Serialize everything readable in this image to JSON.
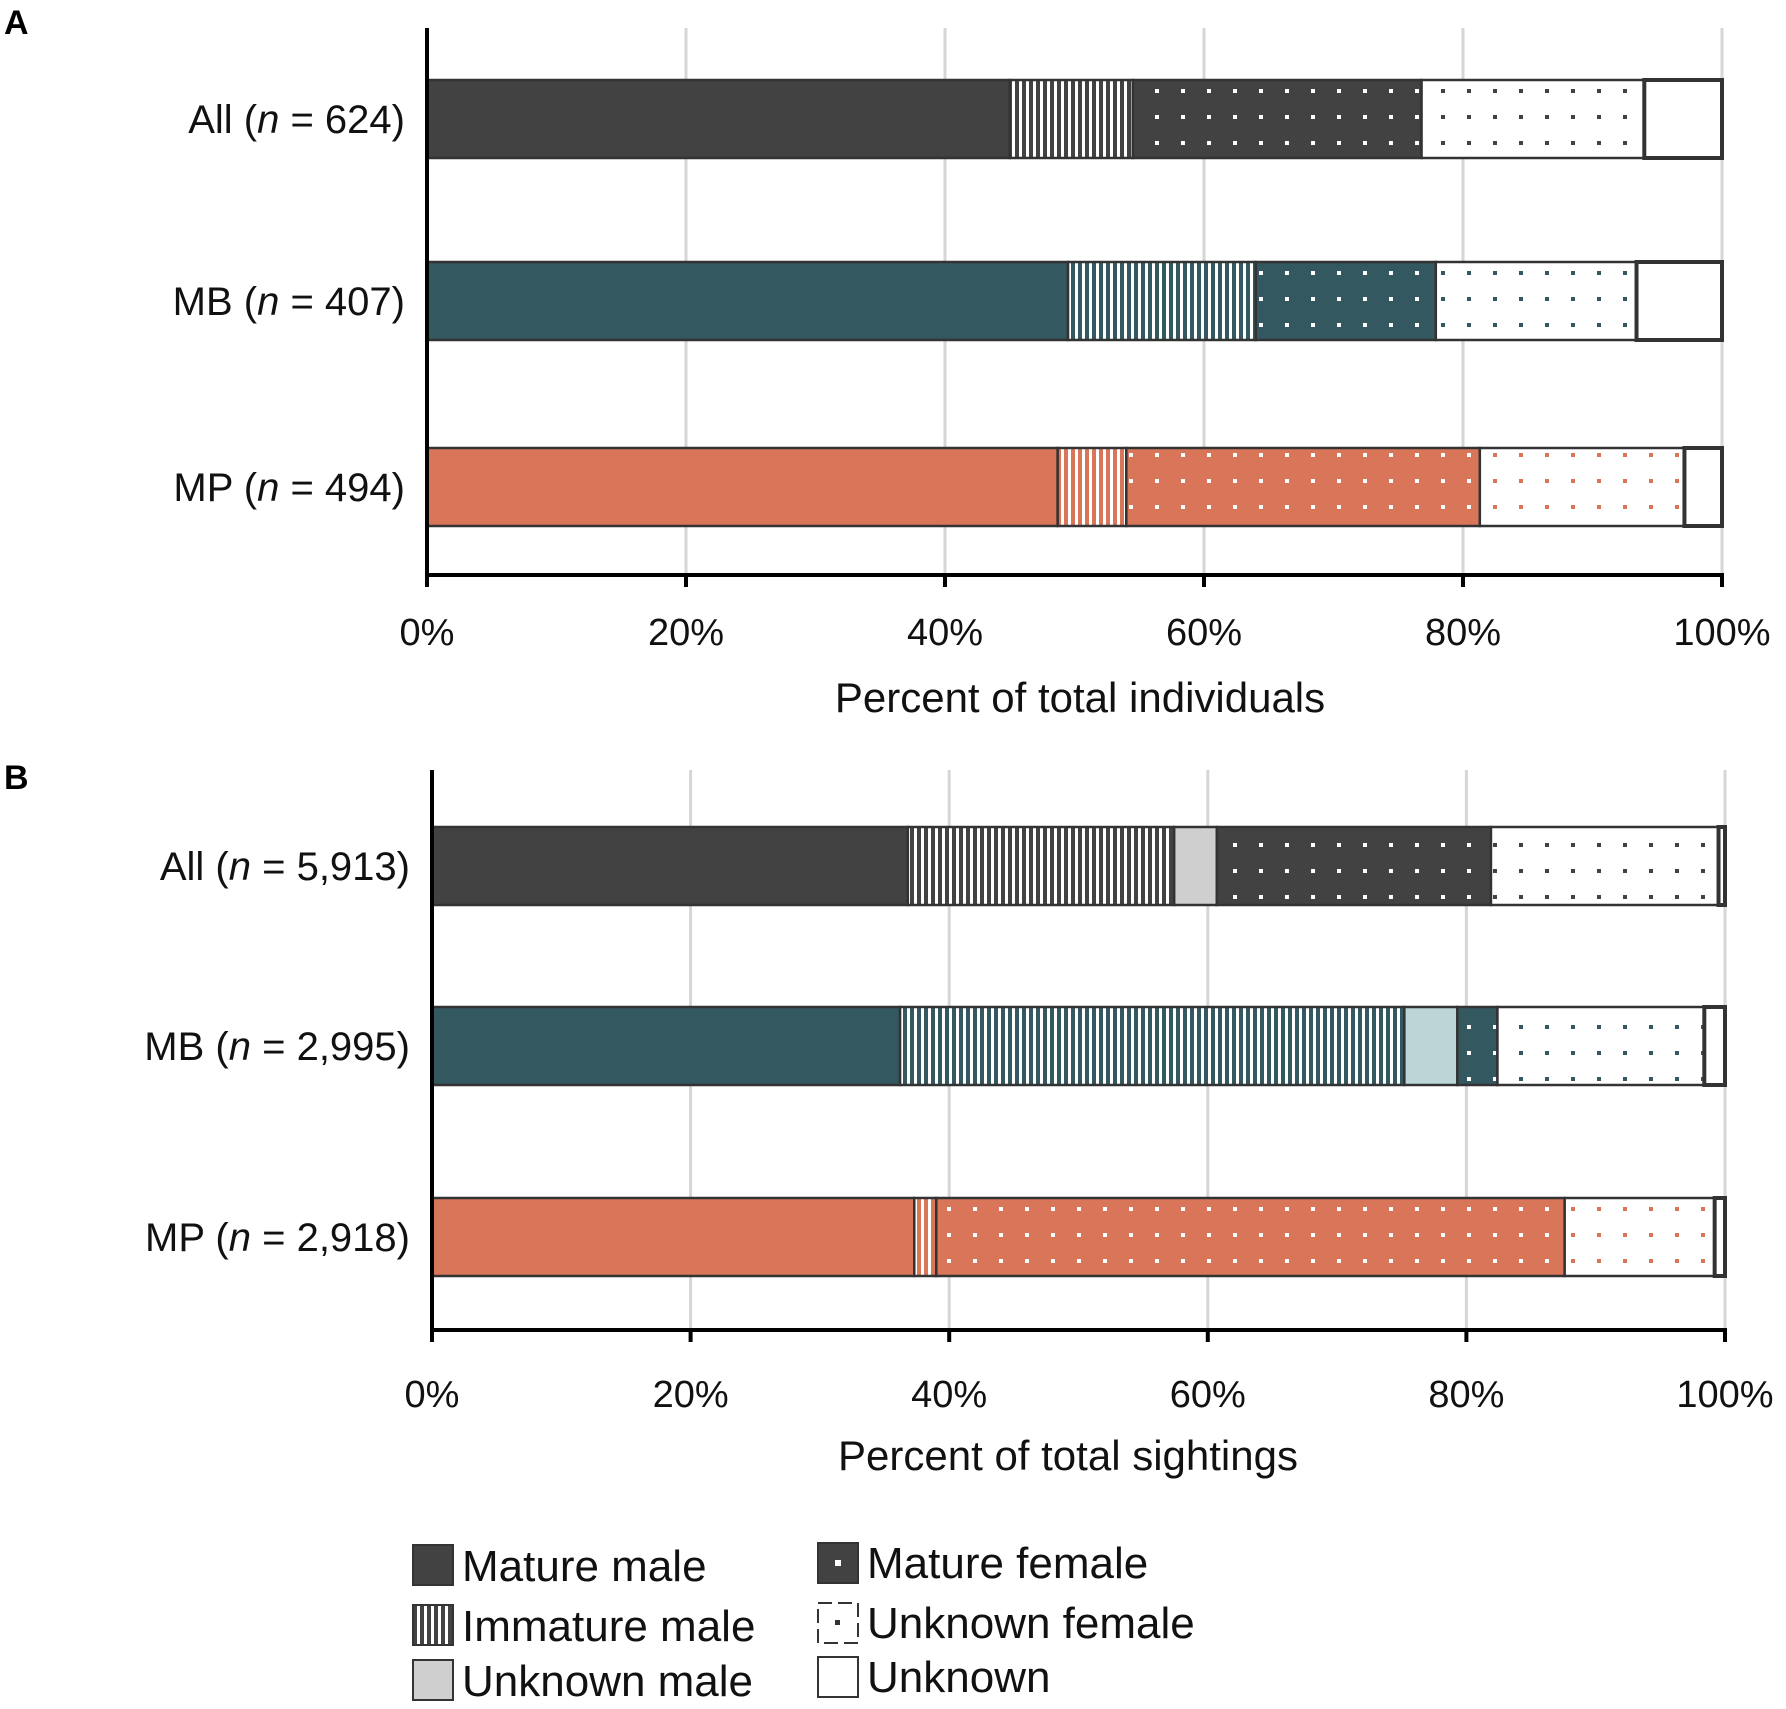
{
  "chart_data": [
    {
      "panel": "A",
      "type": "bar",
      "orientation": "horizontal",
      "stacked": true,
      "xlabel": "Percent of total individuals",
      "xlim": [
        0,
        100
      ],
      "x_ticks": [
        "0%",
        "20%",
        "40%",
        "60%",
        "80%",
        "100%"
      ],
      "grid": true,
      "categories": [
        {
          "id": "all",
          "label_pre": "All (",
          "label_n": "n",
          "label_post": " = 624)"
        },
        {
          "id": "mb",
          "label_pre": "MB (",
          "label_n": "n",
          "label_post": " = 407)"
        },
        {
          "id": "mp",
          "label_pre": "MP (",
          "label_n": "n",
          "label_post": " = 494)"
        }
      ],
      "series": [
        {
          "name": "Mature male",
          "values": [
            45.0,
            49.5,
            48.7
          ]
        },
        {
          "name": "Immature male",
          "values": [
            9.5,
            14.5,
            5.3
          ]
        },
        {
          "name": "Unknown male",
          "values": [
            0,
            0,
            0
          ]
        },
        {
          "name": "Mature female",
          "values": [
            22.3,
            13.9,
            27.3
          ]
        },
        {
          "name": "Unknown female",
          "values": [
            17.2,
            15.5,
            15.8
          ]
        },
        {
          "name": "Unknown",
          "values": [
            6.0,
            6.6,
            2.9
          ]
        }
      ]
    },
    {
      "panel": "B",
      "type": "bar",
      "orientation": "horizontal",
      "stacked": true,
      "xlabel": "Percent of total sightings",
      "xlim": [
        0,
        100
      ],
      "x_ticks": [
        "0%",
        "20%",
        "40%",
        "60%",
        "80%",
        "100%"
      ],
      "grid": true,
      "categories": [
        {
          "id": "all",
          "label_pre": "All (",
          "label_n": "n",
          "label_post": " = 5,913)"
        },
        {
          "id": "mb",
          "label_pre": "MB (",
          "label_n": "n",
          "label_post": " = 2,995)"
        },
        {
          "id": "mp",
          "label_pre": "MP (",
          "label_n": "n",
          "label_post": " = 2,918)"
        }
      ],
      "series": [
        {
          "name": "Mature male",
          "values": [
            36.8,
            36.2,
            37.3
          ]
        },
        {
          "name": "Immature male",
          "values": [
            20.6,
            39.0,
            1.7
          ]
        },
        {
          "name": "Unknown male",
          "values": [
            3.3,
            4.1,
            0
          ]
        },
        {
          "name": "Mature female",
          "values": [
            21.2,
            3.1,
            48.6
          ]
        },
        {
          "name": "Unknown female",
          "values": [
            17.6,
            16.0,
            11.6
          ]
        },
        {
          "name": "Unknown",
          "values": [
            0.5,
            1.6,
            0.8
          ]
        }
      ]
    }
  ],
  "colors": {
    "all": "#424242",
    "mb": "#34585f",
    "mp": "#d9765a",
    "unknown_male_all": "#cfcfcf",
    "unknown_male_mb": "#bcd6d8",
    "outline": "#333333",
    "grid": "#d6d6d6"
  },
  "legend": {
    "items": [
      {
        "key": "mature-male",
        "label": "Mature male"
      },
      {
        "key": "immature-male",
        "label": "Immature male"
      },
      {
        "key": "unknown-male",
        "label": "Unknown male"
      },
      {
        "key": "mature-female",
        "label": "Mature female"
      },
      {
        "key": "unknown-female",
        "label": "Unknown female"
      },
      {
        "key": "unknown",
        "label": "Unknown"
      }
    ]
  }
}
